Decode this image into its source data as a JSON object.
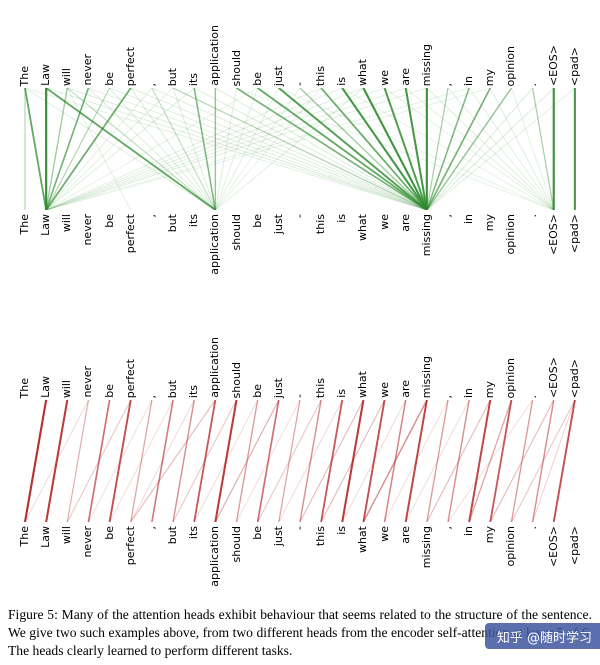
{
  "caption": "Figure 5: Many of the attention heads exhibit behaviour that seems related to the structure of the sentence. We give two such examples above, from two different heads from the encoder self-attention at layer 5 of 6. The heads clearly learned to perform different tasks.",
  "watermark": "知乎 @随时学习",
  "chart_data": {
    "type": "line",
    "subtype": "bipartite-attention-diagram",
    "tokens": [
      "The",
      "Law",
      "will",
      "never",
      "be",
      "perfect",
      ",",
      "but",
      "its",
      "application",
      "should",
      "be",
      "just",
      "-",
      "this",
      "is",
      "what",
      "we",
      "are",
      "missing",
      ",",
      "in",
      "my",
      "opinion",
      ".",
      "<EOS>",
      "<pad>"
    ],
    "layout": {
      "margin_left": 25,
      "step": 21.15
    },
    "panels": [
      {
        "name": "encoder-self-attention-head-1",
        "color": "#2e8b2e",
        "edges": [
          [
            0,
            0,
            0.3
          ],
          [
            0,
            1,
            0.7
          ],
          [
            1,
            1,
            0.95
          ],
          [
            2,
            1,
            0.4
          ],
          [
            3,
            1,
            0.6
          ],
          [
            4,
            1,
            0.3
          ],
          [
            5,
            1,
            0.65
          ],
          [
            1,
            9,
            0.7
          ],
          [
            2,
            9,
            0.25
          ],
          [
            6,
            9,
            0.25
          ],
          [
            8,
            9,
            0.55
          ],
          [
            9,
            9,
            0.45
          ],
          [
            7,
            19,
            0.3
          ],
          [
            10,
            19,
            0.6
          ],
          [
            11,
            19,
            0.7
          ],
          [
            12,
            19,
            0.78
          ],
          [
            13,
            19,
            0.4
          ],
          [
            14,
            19,
            0.65
          ],
          [
            15,
            19,
            0.85
          ],
          [
            16,
            19,
            0.88
          ],
          [
            17,
            19,
            0.8
          ],
          [
            18,
            19,
            0.85
          ],
          [
            19,
            19,
            0.9
          ],
          [
            20,
            19,
            0.35
          ],
          [
            21,
            19,
            0.55
          ],
          [
            22,
            19,
            0.6
          ],
          [
            23,
            19,
            0.45
          ],
          [
            24,
            25,
            0.35
          ],
          [
            25,
            25,
            0.9
          ],
          [
            26,
            26,
            0.85
          ],
          [
            0,
            9,
            0.1
          ],
          [
            0,
            19,
            0.08
          ],
          [
            1,
            19,
            0.1
          ],
          [
            2,
            5,
            0.08
          ],
          [
            2,
            19,
            0.12
          ],
          [
            3,
            9,
            0.1
          ],
          [
            3,
            19,
            0.08
          ],
          [
            4,
            9,
            0.1
          ],
          [
            4,
            19,
            0.1
          ],
          [
            5,
            9,
            0.12
          ],
          [
            5,
            19,
            0.1
          ],
          [
            6,
            1,
            0.08
          ],
          [
            6,
            19,
            0.1
          ],
          [
            7,
            1,
            0.08
          ],
          [
            7,
            9,
            0.12
          ],
          [
            8,
            1,
            0.1
          ],
          [
            8,
            19,
            0.1
          ],
          [
            9,
            19,
            0.12
          ],
          [
            10,
            9,
            0.1
          ],
          [
            10,
            25,
            0.06
          ],
          [
            11,
            9,
            0.08
          ],
          [
            11,
            1,
            0.06
          ],
          [
            12,
            9,
            0.08
          ],
          [
            12,
            25,
            0.06
          ],
          [
            13,
            9,
            0.06
          ],
          [
            14,
            1,
            0.08
          ],
          [
            14,
            9,
            0.06
          ],
          [
            15,
            1,
            0.08
          ],
          [
            15,
            25,
            0.06
          ],
          [
            16,
            1,
            0.1
          ],
          [
            16,
            9,
            0.08
          ],
          [
            17,
            1,
            0.06
          ],
          [
            17,
            25,
            0.08
          ],
          [
            18,
            1,
            0.08
          ],
          [
            18,
            25,
            0.08
          ],
          [
            19,
            1,
            0.1
          ],
          [
            19,
            25,
            0.1
          ],
          [
            20,
            25,
            0.08
          ],
          [
            21,
            25,
            0.08
          ],
          [
            21,
            1,
            0.06
          ],
          [
            22,
            25,
            0.1
          ],
          [
            22,
            1,
            0.06
          ],
          [
            23,
            25,
            0.08
          ],
          [
            24,
            19,
            0.12
          ],
          [
            25,
            19,
            0.12
          ],
          [
            26,
            19,
            0.08
          ]
        ]
      },
      {
        "name": "encoder-self-attention-head-2",
        "color": "#b22222",
        "edges": [
          [
            1,
            0,
            0.9
          ],
          [
            2,
            1,
            0.85
          ],
          [
            3,
            2,
            0.3
          ],
          [
            4,
            3,
            0.6
          ],
          [
            5,
            4,
            0.75
          ],
          [
            6,
            5,
            0.35
          ],
          [
            7,
            6,
            0.55
          ],
          [
            8,
            7,
            0.45
          ],
          [
            9,
            8,
            0.7
          ],
          [
            10,
            9,
            0.85
          ],
          [
            11,
            10,
            0.4
          ],
          [
            12,
            11,
            0.6
          ],
          [
            13,
            12,
            0.35
          ],
          [
            14,
            13,
            0.45
          ],
          [
            15,
            14,
            0.7
          ],
          [
            16,
            15,
            0.85
          ],
          [
            17,
            16,
            0.75
          ],
          [
            18,
            17,
            0.5
          ],
          [
            19,
            18,
            0.8
          ],
          [
            20,
            19,
            0.4
          ],
          [
            21,
            20,
            0.45
          ],
          [
            22,
            21,
            0.8
          ],
          [
            23,
            22,
            0.7
          ],
          [
            24,
            23,
            0.4
          ],
          [
            25,
            24,
            0.45
          ],
          [
            26,
            25,
            0.75
          ],
          [
            9,
            5,
            0.25
          ],
          [
            12,
            9,
            0.3
          ],
          [
            16,
            13,
            0.25
          ],
          [
            19,
            16,
            0.45
          ],
          [
            23,
            21,
            0.35
          ],
          [
            25,
            22,
            0.25
          ],
          [
            10,
            7,
            0.2
          ],
          [
            14,
            11,
            0.2
          ],
          [
            22,
            19,
            0.25
          ],
          [
            26,
            23,
            0.2
          ],
          [
            5,
            2,
            0.2
          ],
          [
            17,
            14,
            0.25
          ],
          [
            3,
            0,
            0.12
          ],
          [
            6,
            3,
            0.1
          ],
          [
            8,
            5,
            0.12
          ],
          [
            11,
            8,
            0.12
          ],
          [
            13,
            10,
            0.1
          ],
          [
            15,
            12,
            0.12
          ],
          [
            18,
            15,
            0.12
          ],
          [
            20,
            17,
            0.1
          ],
          [
            21,
            18,
            0.1
          ],
          [
            24,
            20,
            0.1
          ],
          [
            7,
            4,
            0.1
          ],
          [
            26,
            24,
            0.15
          ]
        ]
      }
    ]
  }
}
